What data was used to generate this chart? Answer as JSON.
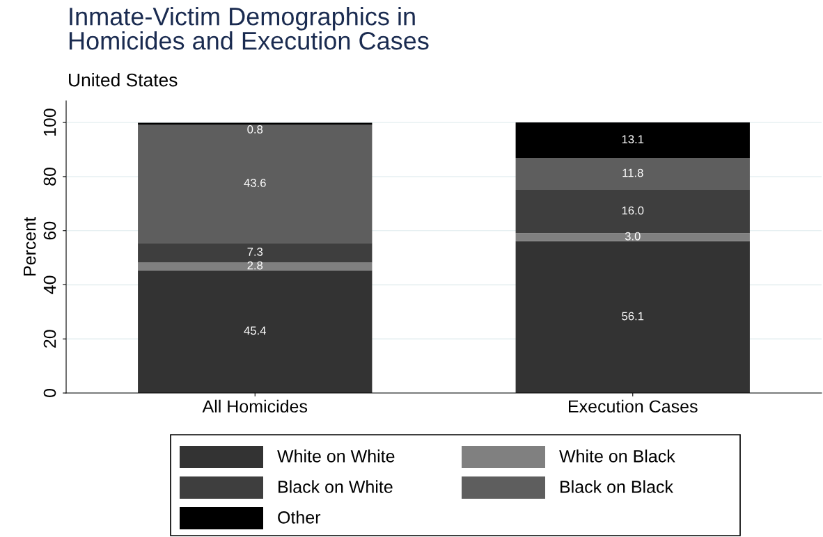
{
  "chart_data": {
    "type": "bar",
    "stacked": true,
    "title": "Inmate-Victim Demographics in\nHomicides and Execution Cases",
    "subtitle": "United States",
    "ylabel": "Percent",
    "categories": [
      "All Homicides",
      "Execution Cases"
    ],
    "series": [
      {
        "name": "White on White",
        "color": "#333333",
        "values": [
          45.4,
          56.1
        ],
        "value_labels": [
          "45.4",
          "56.1"
        ]
      },
      {
        "name": "White on Black",
        "color": "#808080",
        "values": [
          2.8,
          3.0
        ],
        "value_labels": [
          "2.8",
          "3.0"
        ]
      },
      {
        "name": "Black on White",
        "color": "#3e3e3e",
        "values": [
          7.3,
          16.0
        ],
        "value_labels": [
          "7.3",
          "16.0"
        ]
      },
      {
        "name": "Black on Black",
        "color": "#5e5e5e",
        "values": [
          43.6,
          11.8
        ],
        "value_labels": [
          "43.6",
          "11.8"
        ]
      },
      {
        "name": "Other",
        "color": "#000000",
        "values": [
          0.8,
          13.1
        ],
        "value_labels": [
          "0.8",
          "13.1"
        ]
      }
    ],
    "ylim": [
      0,
      108
    ],
    "yticks": [
      0,
      20,
      40,
      60,
      80,
      100
    ],
    "grid": "y",
    "legend": "bottom"
  }
}
